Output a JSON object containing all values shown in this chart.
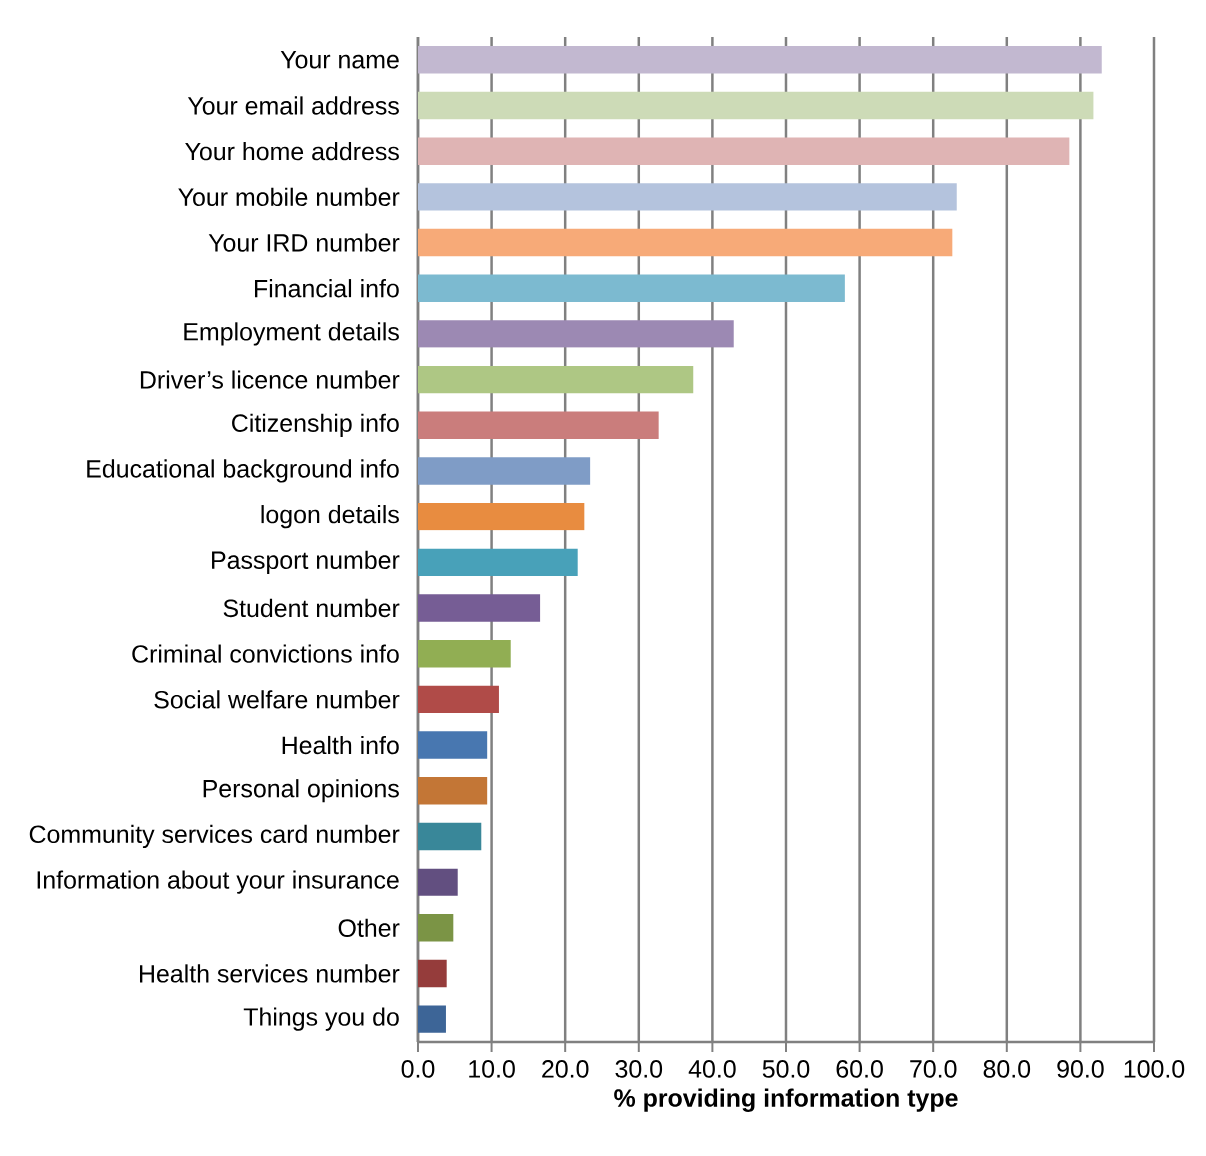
{
  "chart_data": {
    "type": "bar",
    "orientation": "horizontal",
    "xlabel": "% providing information type",
    "categories": [
      "Your name",
      "Your email address",
      "Your home address",
      "Your mobile number",
      "Your IRD number",
      "Financial info",
      "Employment details",
      "Driver’s licence number",
      "Citizenship info",
      "Educational background info",
      "logon details",
      "Passport number",
      "Student number",
      "Criminal convictions info",
      "Social welfare number",
      "Health info",
      "Personal opinions",
      "Community services card number",
      "Information about your insurance",
      "Other",
      "Health services number",
      "Things you do"
    ],
    "values": [
      92.9,
      91.8,
      88.5,
      73.2,
      72.6,
      58.0,
      42.9,
      37.4,
      32.7,
      23.4,
      22.6,
      21.7,
      16.6,
      12.6,
      11.0,
      9.4,
      9.4,
      8.6,
      5.4,
      4.8,
      3.9,
      3.8
    ],
    "colors": [
      "#c2b8d0",
      "#cddbb7",
      "#dfb4b4",
      "#b4c3dd",
      "#f7aa78",
      "#7cbad0",
      "#9c89b3",
      "#aec784",
      "#ca7d7c",
      "#7f9cc6",
      "#e88c40",
      "#48a1b9",
      "#765d95",
      "#91ae53",
      "#b04b48",
      "#4877b0",
      "#c37636",
      "#398799",
      "#624f80",
      "#7b9445",
      "#953c3b",
      "#3d6597"
    ],
    "xlim": [
      0,
      100
    ],
    "xticks": [
      {
        "value": 0,
        "label": "0.0"
      },
      {
        "value": 10,
        "label": "10.0"
      },
      {
        "value": 20,
        "label": "20.0"
      },
      {
        "value": 30,
        "label": "30.0"
      },
      {
        "value": 40,
        "label": "40.0"
      },
      {
        "value": 50,
        "label": "50.0"
      },
      {
        "value": 60,
        "label": "60.0"
      },
      {
        "value": 70,
        "label": "70.0"
      },
      {
        "value": 80,
        "label": "80.0"
      },
      {
        "value": 90,
        "label": "90.0"
      },
      {
        "value": 100,
        "label": "100.0"
      }
    ],
    "grid": "x"
  }
}
